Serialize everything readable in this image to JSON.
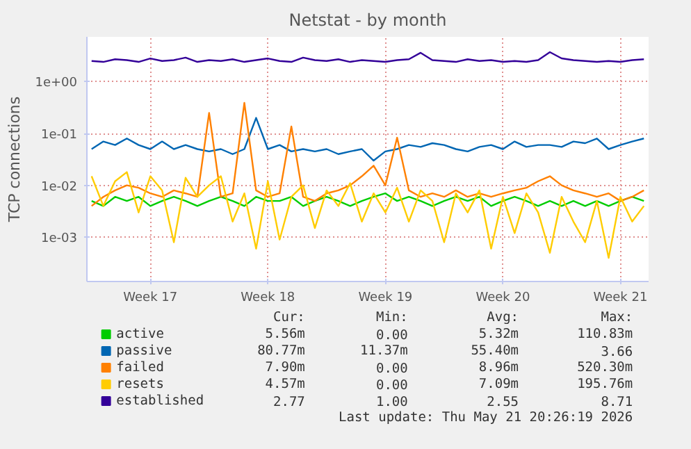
{
  "chart_data": {
    "type": "line",
    "title": "Netstat - by month",
    "ylabel": "TCP connections",
    "log": true,
    "legend": "bottom",
    "grid": true,
    "ylim": [
      0.00014,
      7.3
    ],
    "yticks": [
      {
        "value": 1,
        "label": "1e+00"
      },
      {
        "value": 0.1,
        "label": "1e-01"
      },
      {
        "value": 0.01,
        "label": "1e-02"
      },
      {
        "value": 0.001,
        "label": "1e-03"
      }
    ],
    "categories": [
      null,
      null,
      null,
      null,
      null,
      "Week 17",
      null,
      null,
      null,
      null,
      null,
      null,
      null,
      null,
      null,
      "Week 18",
      null,
      null,
      null,
      null,
      null,
      null,
      null,
      null,
      null,
      "Week 19",
      null,
      null,
      null,
      null,
      null,
      null,
      null,
      null,
      null,
      "Week 20",
      null,
      null,
      null,
      null,
      null,
      null,
      null,
      null,
      null,
      "Week 21",
      null,
      null
    ],
    "series": [
      {
        "name": "active",
        "color": "#00cc00",
        "values": [
          0.005,
          0.004,
          0.006,
          0.005,
          0.006,
          0.004,
          0.005,
          0.006,
          0.005,
          0.004,
          0.005,
          0.006,
          0.005,
          0.004,
          0.006,
          0.005,
          0.005,
          0.006,
          0.004,
          0.005,
          0.006,
          0.005,
          0.004,
          0.005,
          0.006,
          0.007,
          0.005,
          0.006,
          0.005,
          0.004,
          0.005,
          0.006,
          0.005,
          0.006,
          0.004,
          0.005,
          0.006,
          0.005,
          0.004,
          0.005,
          0.004,
          0.005,
          0.004,
          0.005,
          0.004,
          0.005,
          0.006,
          0.005
        ]
      },
      {
        "name": "passive",
        "color": "#0066b3",
        "values": [
          0.05,
          0.07,
          0.06,
          0.08,
          0.06,
          0.05,
          0.07,
          0.05,
          0.06,
          0.05,
          0.045,
          0.05,
          0.04,
          0.05,
          0.2,
          0.05,
          0.06,
          0.045,
          0.05,
          0.045,
          0.05,
          0.04,
          0.045,
          0.05,
          0.03,
          0.045,
          0.05,
          0.06,
          0.055,
          0.065,
          0.06,
          0.05,
          0.045,
          0.055,
          0.06,
          0.05,
          0.07,
          0.055,
          0.06,
          0.06,
          0.055,
          0.07,
          0.065,
          0.08,
          0.05,
          0.06,
          0.07,
          0.08
        ]
      },
      {
        "name": "failed",
        "color": "#ff8000",
        "values": [
          0.004,
          0.006,
          0.008,
          0.01,
          0.009,
          0.007,
          0.006,
          0.008,
          0.007,
          0.006,
          0.25,
          0.006,
          0.007,
          0.39,
          0.008,
          0.006,
          0.007,
          0.137,
          0.006,
          0.005,
          0.007,
          0.008,
          0.01,
          0.015,
          0.024,
          0.01,
          0.083,
          0.008,
          0.006,
          0.007,
          0.006,
          0.008,
          0.006,
          0.007,
          0.006,
          0.007,
          0.008,
          0.009,
          0.012,
          0.015,
          0.01,
          0.008,
          0.007,
          0.006,
          0.007,
          0.005,
          0.006,
          0.008
        ]
      },
      {
        "name": "resets",
        "color": "#ffcc00",
        "values": [
          0.015,
          0.004,
          0.012,
          0.018,
          0.003,
          0.015,
          0.008,
          0.0008,
          0.014,
          0.006,
          0.01,
          0.015,
          0.002,
          0.007,
          0.0006,
          0.012,
          0.0009,
          0.006,
          0.01,
          0.0015,
          0.008,
          0.004,
          0.011,
          0.002,
          0.007,
          0.003,
          0.009,
          0.002,
          0.008,
          0.005,
          0.0008,
          0.007,
          0.003,
          0.008,
          0.0006,
          0.006,
          0.0012,
          0.007,
          0.003,
          0.0005,
          0.006,
          0.002,
          0.0008,
          0.005,
          0.0004,
          0.006,
          0.002,
          0.004
        ]
      },
      {
        "name": "established",
        "color": "#330099",
        "values": [
          2.5,
          2.4,
          2.7,
          2.6,
          2.4,
          2.8,
          2.5,
          2.6,
          2.9,
          2.4,
          2.6,
          2.5,
          2.7,
          2.4,
          2.6,
          2.8,
          2.5,
          2.4,
          2.9,
          2.6,
          2.5,
          2.7,
          2.4,
          2.6,
          2.5,
          2.4,
          2.6,
          2.7,
          3.6,
          2.6,
          2.5,
          2.4,
          2.7,
          2.5,
          2.6,
          2.4,
          2.5,
          2.4,
          2.6,
          3.7,
          2.8,
          2.6,
          2.5,
          2.4,
          2.5,
          2.4,
          2.6,
          2.7
        ]
      }
    ],
    "annotations": [
      "Cur:",
      "Min:",
      "Avg:",
      "Max:",
      "5.56m",
      "0.00",
      "5.32m",
      "110.83m",
      "80.77m",
      "11.37m",
      "55.40m",
      "3.66",
      "7.90m",
      "0.00",
      "8.96m",
      "520.30m",
      "4.57m",
      "0.00",
      "7.09m",
      "195.76m",
      "2.77",
      "1.00",
      "2.55",
      "8.71",
      "Last update: Thu May 21 20:26:19 2026"
    ]
  }
}
